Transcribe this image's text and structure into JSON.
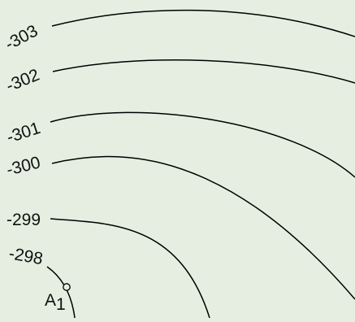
{
  "contour_labels": {
    "c303": "-303",
    "c302": "-302",
    "c301": "-301",
    "c300": "-300",
    "c299": "-299",
    "c298": "-298"
  },
  "point": {
    "label": "A",
    "subscript": "1"
  },
  "colors": {
    "background": "#e6eee1",
    "line": "#000000",
    "text": "#111111"
  }
}
